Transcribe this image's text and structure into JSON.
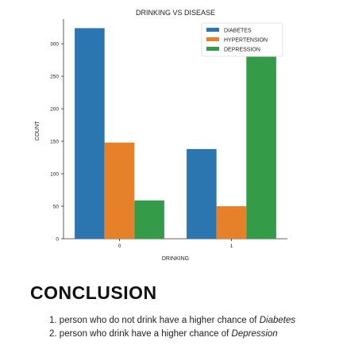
{
  "chart_data": {
    "type": "bar",
    "title": "DRINKING VS DISEASE",
    "xlabel": "DRINKING",
    "ylabel": "COUNT",
    "categories": [
      "0",
      "1"
    ],
    "series": [
      {
        "name": "DIABETES",
        "color": "#2b75b1",
        "values": [
          324,
          138
        ]
      },
      {
        "name": "HYPERTENSION",
        "color": "#e68029",
        "values": [
          148,
          50
        ]
      },
      {
        "name": "DEPRESSION",
        "color": "#349c48",
        "values": [
          59,
          280
        ]
      }
    ],
    "ylim": [
      0,
      338
    ],
    "yticks": [
      0,
      50,
      100,
      150,
      200,
      250,
      300
    ],
    "grid": false,
    "legend": "top-right"
  },
  "conclusion": {
    "title": "CONCLUSION",
    "items": [
      {
        "number": "1.",
        "text": "person who do not drink have a higher chance of",
        "emphasis": "Diabetes"
      },
      {
        "number": "2.",
        "text": "person who drink have a higher chance of",
        "emphasis": "Depression"
      }
    ]
  }
}
